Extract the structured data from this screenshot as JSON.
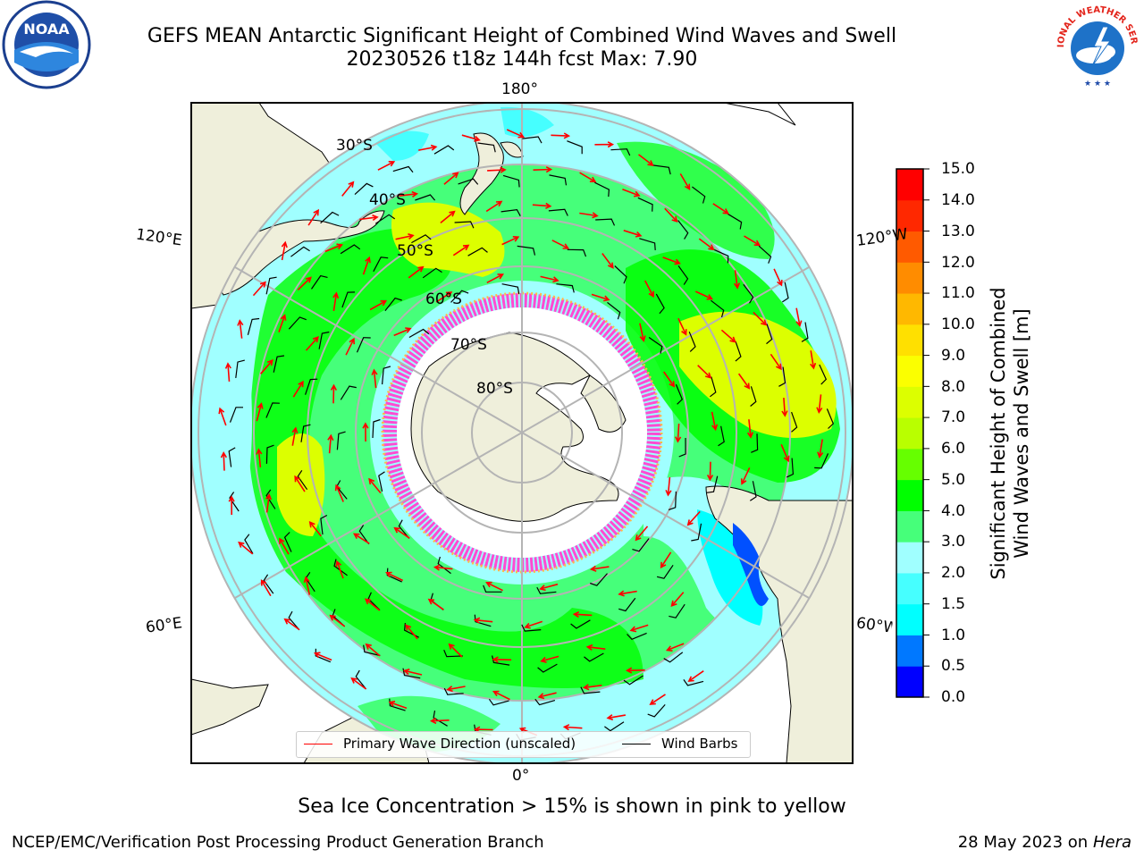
{
  "title_line1": "GEFS MEAN Antarctic Significant Height of Combined Wind Waves and Swell",
  "title_line2": "20230526 t18z 144h fcst   Max: 7.90",
  "logos": {
    "left": "NOAA",
    "right": "NATIONAL WEATHER SERVICE"
  },
  "map": {
    "projection": "south polar stereographic",
    "lat_labels": [
      "30°S",
      "40°S",
      "50°S",
      "60°S",
      "70°S",
      "80°S"
    ],
    "lon_labels": {
      "top": "180°",
      "bottom": "0°",
      "left_upper": "120°E",
      "left_lower": "60°E",
      "right_upper": "120°W",
      "right_lower": "60°W"
    }
  },
  "legend": {
    "wave": "Primary Wave Direction (unscaled)",
    "wind": "Wind Barbs",
    "wave_color": "#ff0000",
    "wind_color": "#000000"
  },
  "colorbar": {
    "title_line1": "Significant Height of Combined",
    "title_line2": "Wind Waves and Swell [m]",
    "ticks": [
      "15.0",
      "14.0",
      "13.0",
      "12.0",
      "11.0",
      "10.0",
      "9.0",
      "8.0",
      "7.0",
      "6.0",
      "5.0",
      "4.0",
      "3.0",
      "2.0",
      "1.5",
      "1.0",
      "0.5",
      "0.0"
    ],
    "colors_bottom_to_top": [
      "#0000ff",
      "#0078ff",
      "#00ffff",
      "#46ffff",
      "#a0ffff",
      "#46ff7a",
      "#00ff00",
      "#66ff00",
      "#b9ff00",
      "#dcff00",
      "#fbff00",
      "#ffe000",
      "#ffb800",
      "#ff8c00",
      "#ff5a00",
      "#ff2800",
      "#ff0000"
    ]
  },
  "footer_note": "Sea Ice Concentration > 15% is shown in pink to yellow",
  "footer_left": "NCEP/EMC/Verification Post Processing Product Generation Branch",
  "footer_right_prefix": "28 May 2023 on",
  "footer_right_italic": "Hera"
}
